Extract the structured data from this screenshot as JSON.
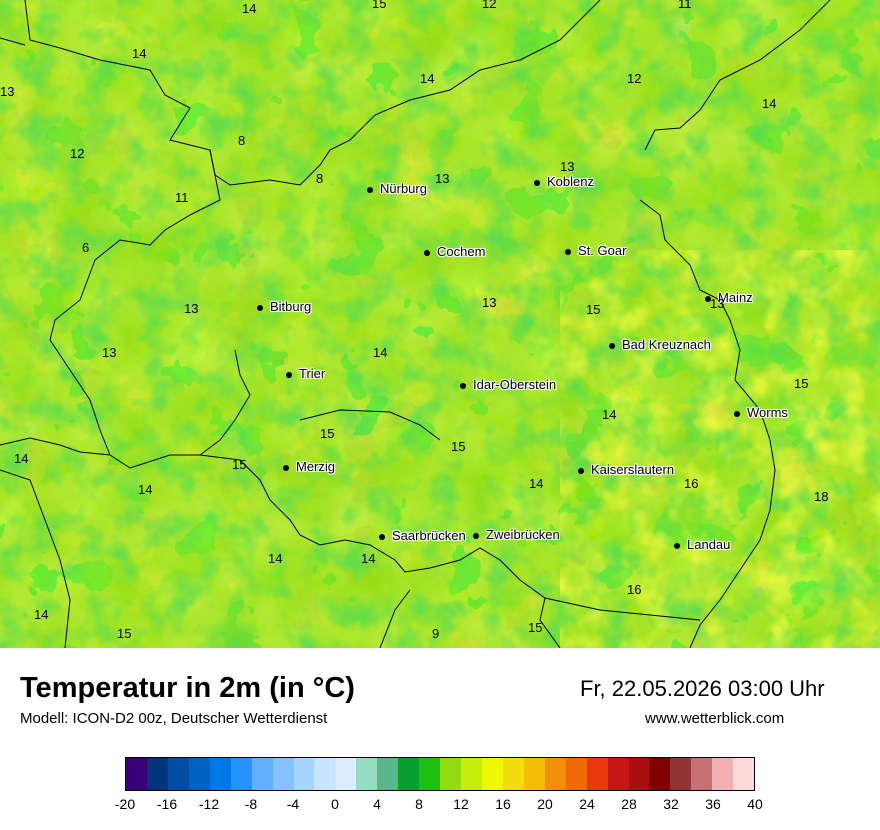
{
  "title": "Temperatur in 2m (in °C)",
  "subtitle": "Modell: ICON-D2 00z, Deutscher Wetterdienst",
  "datetime": "Fr, 22.05.2026 03:00 Uhr",
  "website": "www.wetterblick.com",
  "legend": {
    "ticks": [
      "-20",
      "-16",
      "-12",
      "-8",
      "-4",
      "0",
      "4",
      "8",
      "12",
      "16",
      "20",
      "24",
      "28",
      "32",
      "36",
      "40"
    ],
    "colors": [
      "#3a0078",
      "#00347c",
      "#004da2",
      "#0062c1",
      "#0078e5",
      "#2793ff",
      "#62b0ff",
      "#86c2ff",
      "#a7d3ff",
      "#c9e4ff",
      "#daecfe",
      "#95dcc1",
      "#5bb58a",
      "#0a9e2e",
      "#1fbe12",
      "#8fdc10",
      "#c6ee0a",
      "#ecf900",
      "#f3dc0b",
      "#f5be06",
      "#f29109",
      "#f06a0a",
      "#e8390c",
      "#c61515",
      "#aa0e10",
      "#800000",
      "#903434",
      "#c77373",
      "#f2b0b0",
      "#ffd9d9"
    ]
  },
  "cities": [
    {
      "name": "Nürburg"
    },
    {
      "name": "Koblenz"
    },
    {
      "name": "Cochem"
    },
    {
      "name": "St. Goar"
    },
    {
      "name": "Bitburg"
    },
    {
      "name": "Mainz"
    },
    {
      "name": "Bad Kreuznach"
    },
    {
      "name": "Trier"
    },
    {
      "name": "Idar-Oberstein"
    },
    {
      "name": "Worms"
    },
    {
      "name": "Merzig"
    },
    {
      "name": "Kaiserslautern"
    },
    {
      "name": "Saarbrücken"
    },
    {
      "name": "Zweibrücken"
    },
    {
      "name": "Landau"
    }
  ],
  "temperatures": [
    "14",
    "15",
    "12",
    "11",
    "14",
    "14",
    "12",
    "13",
    "14",
    "12",
    "8",
    "8",
    "13",
    "13",
    "11",
    "6",
    "13",
    "13",
    "15",
    "13",
    "13",
    "14",
    "15",
    "14",
    "15",
    "14",
    "15",
    "15",
    "14",
    "16",
    "18",
    "14",
    "14",
    "14",
    "16",
    "14",
    "15",
    "9",
    "15"
  ]
}
